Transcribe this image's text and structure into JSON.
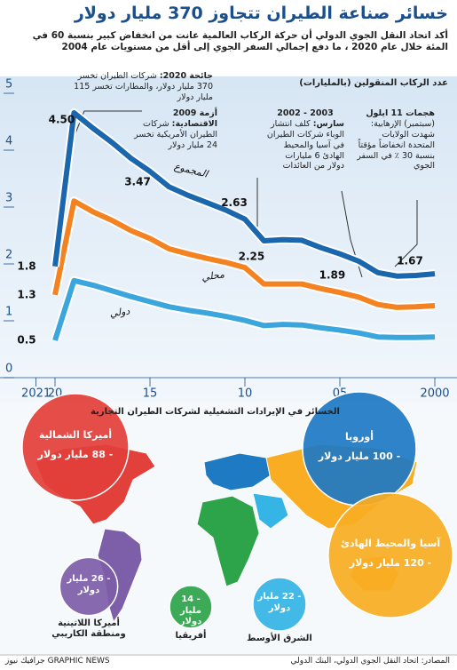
{
  "chart_data": {
    "type": "line",
    "title": "خسائر صناعة الطيران تتجاوز 370 مليار دولار",
    "subtitle": "أكد اتحاد النقل الجوي الدولي أن حركة الركاب العالمية عانت من انخفاض كبير بنسبة 60 في المئة خلال عام 2020 ، ما دفع إجمالي السفر الجوي إلى أقل من مستويات عام 2004",
    "ylabel": "عدد الركاب المنقولين (بالمليارات)",
    "x": [
      2000,
      2001,
      2002,
      2003,
      2004,
      2005,
      2006,
      2007,
      2008,
      2009,
      2010,
      2011,
      2012,
      2013,
      2014,
      2015,
      2016,
      2017,
      2018,
      2019,
      2020
    ],
    "xlim": [
      2021,
      2000
    ],
    "xticks": [
      2021,
      {
        "value": 2020,
        "label": "20"
      },
      {
        "value": 2015,
        "label": "15"
      },
      {
        "value": 2010,
        "label": "10"
      },
      {
        "value": 2005,
        "label": "05"
      },
      2000
    ],
    "ylim": [
      0,
      5
    ],
    "yticks": [
      0,
      1,
      2,
      3,
      4,
      5
    ],
    "series": [
      {
        "name": "المجموع",
        "color": "#1a67ad",
        "values": [
          1.67,
          1.64,
          1.63,
          1.69,
          1.89,
          2.02,
          2.13,
          2.26,
          2.27,
          2.25,
          2.63,
          2.79,
          2.92,
          3.05,
          3.2,
          3.47,
          3.7,
          3.98,
          4.23,
          4.5,
          1.8
        ],
        "value_labels": [
          "1.67",
          null,
          null,
          null,
          "1.89",
          null,
          null,
          null,
          null,
          "2.25",
          "2.63",
          null,
          null,
          null,
          null,
          "3.47",
          null,
          null,
          null,
          "4.50",
          "1.8"
        ]
      },
      {
        "name": "محلي",
        "color": "#f58220",
        "values": [
          1.11,
          1.09,
          1.08,
          1.13,
          1.26,
          1.34,
          1.41,
          1.49,
          1.49,
          1.49,
          1.78,
          1.87,
          1.94,
          2.02,
          2.11,
          2.29,
          2.43,
          2.61,
          2.76,
          2.95,
          1.3
        ],
        "value_labels": [
          null,
          null,
          null,
          null,
          null,
          null,
          null,
          null,
          null,
          null,
          null,
          null,
          null,
          null,
          null,
          null,
          null,
          null,
          null,
          null,
          "1.3"
        ]
      },
      {
        "name": "دولي",
        "color": "#3ba6de",
        "values": [
          0.56,
          0.55,
          0.55,
          0.56,
          0.63,
          0.68,
          0.72,
          0.77,
          0.78,
          0.76,
          0.85,
          0.92,
          0.98,
          1.03,
          1.09,
          1.18,
          1.27,
          1.37,
          1.47,
          1.55,
          0.5
        ],
        "value_labels": [
          null,
          null,
          null,
          null,
          null,
          null,
          null,
          null,
          null,
          null,
          null,
          null,
          null,
          null,
          null,
          null,
          null,
          null,
          null,
          null,
          "0.5"
        ]
      }
    ],
    "annotations": [
      {
        "title": "جائحة 2020:",
        "text": "شركات الطيران تخسر 370 مليار دولار، والمطارات تخسر 115 مليار دولار"
      },
      {
        "title": "أزمة 2009 الاقتصادية:",
        "text": "شركات الطيران الأمريكية تخسر 24 مليار دولار"
      },
      {
        "title": "سارس:",
        "text": "كلف انتشار الوباء شركات الطيران في آسيا والمحيط الهادئ 6 مليارات دولار من العائدات",
        "header": "2003 - 2002"
      },
      {
        "title": "هجمات 11 ايلول",
        "text": "(سبتمبر) الإرهابية: شهدت الولايات المتحدة انخفاضاً مؤقتاً بنسبة 30 ٪ في السفر الجوي"
      }
    ]
  },
  "map": {
    "title": "الخسائر في الإيرادات التشغيلية لشركات الطيران التجارية",
    "regions": [
      {
        "name": "أميركا الشمالية",
        "value": 88,
        "label": "- 88 مليار دولار",
        "color": "#e2403a"
      },
      {
        "name": "أوروبا",
        "value": 100,
        "label": "- 100 مليار دولار",
        "color": "#1f7ac4"
      },
      {
        "name": "آسيا والمحيط الهادئ",
        "value": 120,
        "label": "- 120 مليار دولار",
        "color": "#f9ad22"
      },
      {
        "name": "أميركا اللاتينية ومنطقة الكاريبي",
        "value": 26,
        "label": "- 26 مليار دولار",
        "color": "#7d5ea8"
      },
      {
        "name": "أفريقيا",
        "value": 14,
        "label": "- 14 مليار دولار",
        "color": "#2ea44a"
      },
      {
        "name": "الشرق الأوسط",
        "value": 22,
        "label": "- 22 مليار دولار",
        "color": "#35b4e6"
      }
    ]
  },
  "footer": {
    "source": "المصادر: اتحاد النقل الجوي الدولي، البنك الدولي",
    "brand": "GRAPHIC NEWS",
    "brand_ar": "جرافيك نيوز"
  }
}
